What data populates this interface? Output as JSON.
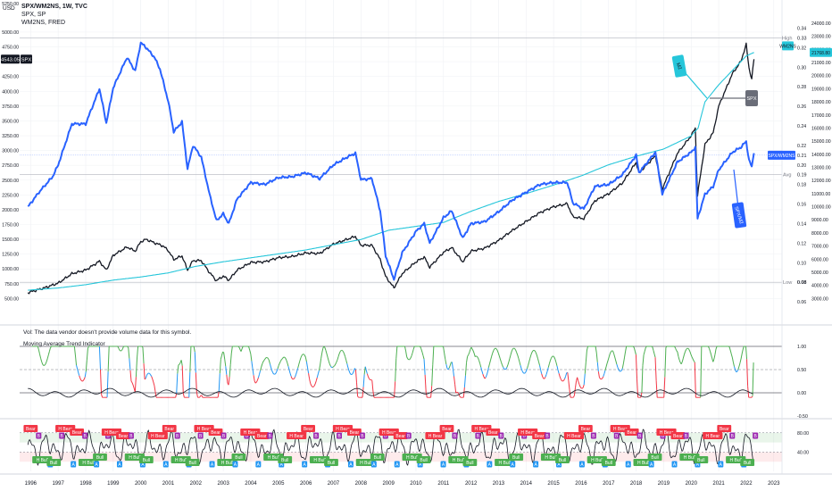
{
  "header": {
    "title": "SPX/WM2NS, 1W, TVC",
    "series": [
      "SPX, SP",
      "WM2NS, FRED"
    ],
    "usd_label": "USD"
  },
  "volume_note": "Vol: The data vendor doesn't provide volume data for this symbol.",
  "indicator_name": "Moving Average Trend Indicator",
  "colors": {
    "spx": "#131722",
    "m2": "#26c6da",
    "ratio": "#2962ff",
    "bull": "#4caf50",
    "bear": "#f23645",
    "neutral": "#2196f3",
    "purple": "#9c27b0"
  },
  "chart_data": [
    {
      "type": "line",
      "title": "SPX/WM2NS, 1W, TVC",
      "x_ticks": [
        "1996",
        "1997",
        "1998",
        "1999",
        "2000",
        "2001",
        "2002",
        "2003",
        "2004",
        "2005",
        "2006",
        "2007",
        "2008",
        "2009",
        "2010",
        "2011",
        "2012",
        "2013",
        "2014",
        "2015",
        "2016",
        "2017",
        "2018",
        "2019",
        "2020",
        "2021",
        "2022",
        "2023"
      ],
      "x_range": [
        1995.6,
        2023.3
      ],
      "left_axis": {
        "ticks": [
          500,
          750,
          1000,
          1250,
          1500,
          1750,
          2000,
          2250,
          2500,
          2750,
          3000,
          3250,
          3500,
          3750,
          4000,
          4250,
          4500,
          4750,
          5000
        ],
        "ylim": [
          280,
          5150
        ],
        "top_label": "5250.00"
      },
      "mid_axis": {
        "ticks": [
          0.06,
          0.08,
          0.1,
          0.12,
          0.14,
          0.16,
          0.18,
          0.2,
          0.22,
          0.24,
          0.26,
          0.28,
          0.3,
          0.32,
          0.34
        ],
        "ylim": [
          0.05,
          0.345
        ]
      },
      "right_axis": {
        "ticks": [
          3000,
          4000,
          5000,
          6000,
          7000,
          8000,
          9000,
          10000,
          11000,
          12000,
          13000,
          14000,
          15000,
          16000,
          17000,
          18000,
          19000,
          20000,
          21000,
          22000,
          23000,
          24000
        ],
        "ylim": [
          2000,
          24000
        ]
      },
      "labels": {
        "spx_price": "4543.05",
        "spx_tag": "SPX",
        "high": "High",
        "high_val": "0.33",
        "m2_tag": "WM2NS",
        "m2_val": "21768.80",
        "ratio_tag": "SPX/WM2NS",
        "ratio_val": "0.21",
        "avg": "Avg",
        "avg_val": "0.19",
        "low": "Low",
        "low_val": "0.08"
      },
      "callouts": [
        "M2",
        "SPX",
        "SPX/M2"
      ],
      "series": [
        {
          "name": "SPX",
          "axis": "left",
          "color": "#131722",
          "points": [
            [
              1995.9,
              600
            ],
            [
              1996.5,
              680
            ],
            [
              1997.0,
              760
            ],
            [
              1997.5,
              920
            ],
            [
              1998.0,
              980
            ],
            [
              1998.5,
              1130
            ],
            [
              1998.75,
              980
            ],
            [
              1999.0,
              1230
            ],
            [
              1999.5,
              1370
            ],
            [
              1999.8,
              1300
            ],
            [
              2000.0,
              1460
            ],
            [
              2000.2,
              1500
            ],
            [
              2000.5,
              1440
            ],
            [
              2000.8,
              1390
            ],
            [
              2001.0,
              1310
            ],
            [
              2001.2,
              1160
            ],
            [
              2001.5,
              1220
            ],
            [
              2001.7,
              980
            ],
            [
              2001.9,
              1140
            ],
            [
              2002.2,
              1140
            ],
            [
              2002.5,
              940
            ],
            [
              2002.75,
              800
            ],
            [
              2003.0,
              880
            ],
            [
              2003.2,
              810
            ],
            [
              2003.5,
              980
            ],
            [
              2004.0,
              1110
            ],
            [
              2004.5,
              1120
            ],
            [
              2005.0,
              1190
            ],
            [
              2005.5,
              1210
            ],
            [
              2006.0,
              1270
            ],
            [
              2006.5,
              1260
            ],
            [
              2007.0,
              1420
            ],
            [
              2007.5,
              1500
            ],
            [
              2007.8,
              1550
            ],
            [
              2008.0,
              1400
            ],
            [
              2008.4,
              1400
            ],
            [
              2008.7,
              1160
            ],
            [
              2008.9,
              870
            ],
            [
              2009.2,
              680
            ],
            [
              2009.5,
              920
            ],
            [
              2010.0,
              1120
            ],
            [
              2010.3,
              1200
            ],
            [
              2010.5,
              1030
            ],
            [
              2011.0,
              1280
            ],
            [
              2011.3,
              1360
            ],
            [
              2011.7,
              1120
            ],
            [
              2012.0,
              1300
            ],
            [
              2012.5,
              1350
            ],
            [
              2013.0,
              1480
            ],
            [
              2013.5,
              1650
            ],
            [
              2014.0,
              1800
            ],
            [
              2014.5,
              1950
            ],
            [
              2015.0,
              2050
            ],
            [
              2015.5,
              2100
            ],
            [
              2015.7,
              1880
            ],
            [
              2016.1,
              1850
            ],
            [
              2016.5,
              2150
            ],
            [
              2017.0,
              2270
            ],
            [
              2017.5,
              2450
            ],
            [
              2018.0,
              2800
            ],
            [
              2018.1,
              2620
            ],
            [
              2018.7,
              2910
            ],
            [
              2018.95,
              2350
            ],
            [
              2019.5,
              2950
            ],
            [
              2020.0,
              3250
            ],
            [
              2020.15,
              3380
            ],
            [
              2020.23,
              2240
            ],
            [
              2020.5,
              3100
            ],
            [
              2020.8,
              3300
            ],
            [
              2021.0,
              3750
            ],
            [
              2021.5,
              4300
            ],
            [
              2021.8,
              4500
            ],
            [
              2022.0,
              4790
            ],
            [
              2022.1,
              4400
            ],
            [
              2022.2,
              4200
            ],
            [
              2022.28,
              4543
            ]
          ]
        },
        {
          "name": "WM2NS",
          "axis": "right",
          "color": "#26c6da",
          "points": [
            [
              1995.9,
              3630
            ],
            [
              1997.0,
              3800
            ],
            [
              1998.0,
              4050
            ],
            [
              1999.0,
              4400
            ],
            [
              2000.0,
              4640
            ],
            [
              2001.0,
              4950
            ],
            [
              2002.0,
              5450
            ],
            [
              2003.0,
              5800
            ],
            [
              2004.0,
              6100
            ],
            [
              2005.0,
              6400
            ],
            [
              2006.0,
              6700
            ],
            [
              2007.0,
              7100
            ],
            [
              2008.0,
              7500
            ],
            [
              2009.0,
              8200
            ],
            [
              2010.0,
              8500
            ],
            [
              2011.0,
              8800
            ],
            [
              2012.0,
              9650
            ],
            [
              2013.0,
              10400
            ],
            [
              2014.0,
              11000
            ],
            [
              2015.0,
              11650
            ],
            [
              2016.0,
              12350
            ],
            [
              2017.0,
              13200
            ],
            [
              2018.0,
              13850
            ],
            [
              2019.0,
              14400
            ],
            [
              2020.0,
              15400
            ],
            [
              2020.25,
              16000
            ],
            [
              2020.5,
              18000
            ],
            [
              2021.0,
              19300
            ],
            [
              2021.5,
              20400
            ],
            [
              2022.0,
              21500
            ],
            [
              2022.28,
              21769
            ]
          ]
        },
        {
          "name": "SPX/WM2NS",
          "axis": "mid",
          "color": "#2962ff",
          "points": [
            [
              1995.9,
              0.157
            ],
            [
              1996.3,
              0.172
            ],
            [
              1996.8,
              0.188
            ],
            [
              1997.0,
              0.2
            ],
            [
              1997.5,
              0.242
            ],
            [
              1998.0,
              0.242
            ],
            [
              1998.5,
              0.278
            ],
            [
              1998.75,
              0.243
            ],
            [
              1999.0,
              0.279
            ],
            [
              1999.5,
              0.31
            ],
            [
              1999.8,
              0.296
            ],
            [
              2000.0,
              0.325
            ],
            [
              2000.2,
              0.32
            ],
            [
              2000.5,
              0.31
            ],
            [
              2000.7,
              0.298
            ],
            [
              2001.0,
              0.265
            ],
            [
              2001.2,
              0.234
            ],
            [
              2001.5,
              0.244
            ],
            [
              2001.7,
              0.196
            ],
            [
              2001.9,
              0.22
            ],
            [
              2002.2,
              0.208
            ],
            [
              2002.5,
              0.17
            ],
            [
              2002.75,
              0.143
            ],
            [
              2003.0,
              0.15
            ],
            [
              2003.2,
              0.14
            ],
            [
              2003.5,
              0.165
            ],
            [
              2004.0,
              0.182
            ],
            [
              2004.5,
              0.18
            ],
            [
              2005.0,
              0.187
            ],
            [
              2005.5,
              0.188
            ],
            [
              2006.0,
              0.192
            ],
            [
              2006.5,
              0.186
            ],
            [
              2007.0,
              0.2
            ],
            [
              2007.5,
              0.208
            ],
            [
              2007.8,
              0.212
            ],
            [
              2008.0,
              0.185
            ],
            [
              2008.4,
              0.186
            ],
            [
              2008.7,
              0.153
            ],
            [
              2008.9,
              0.107
            ],
            [
              2009.2,
              0.083
            ],
            [
              2009.5,
              0.11
            ],
            [
              2010.0,
              0.132
            ],
            [
              2010.3,
              0.14
            ],
            [
              2010.5,
              0.12
            ],
            [
              2011.0,
              0.146
            ],
            [
              2011.3,
              0.153
            ],
            [
              2011.7,
              0.125
            ],
            [
              2012.0,
              0.14
            ],
            [
              2012.5,
              0.142
            ],
            [
              2013.0,
              0.152
            ],
            [
              2013.5,
              0.164
            ],
            [
              2014.0,
              0.172
            ],
            [
              2014.5,
              0.18
            ],
            [
              2015.0,
              0.182
            ],
            [
              2015.5,
              0.182
            ],
            [
              2015.7,
              0.161
            ],
            [
              2016.1,
              0.155
            ],
            [
              2016.5,
              0.178
            ],
            [
              2017.0,
              0.18
            ],
            [
              2017.5,
              0.19
            ],
            [
              2018.0,
              0.21
            ],
            [
              2018.1,
              0.192
            ],
            [
              2018.7,
              0.213
            ],
            [
              2018.95,
              0.17
            ],
            [
              2019.5,
              0.203
            ],
            [
              2020.0,
              0.213
            ],
            [
              2020.15,
              0.218
            ],
            [
              2020.23,
              0.145
            ],
            [
              2020.5,
              0.17
            ],
            [
              2020.8,
              0.178
            ],
            [
              2021.0,
              0.195
            ],
            [
              2021.5,
              0.213
            ],
            [
              2021.8,
              0.218
            ],
            [
              2022.0,
              0.224
            ],
            [
              2022.1,
              0.205
            ],
            [
              2022.2,
              0.198
            ],
            [
              2022.28,
              0.212
            ]
          ]
        }
      ]
    },
    {
      "type": "line",
      "title": "Moving Average Trend Indicator",
      "ylim": [
        -0.5,
        1.0
      ],
      "y_ticks": [
        1.0,
        0.5,
        0.0,
        -0.5
      ],
      "y_tick_labels": [
        "1.00",
        "0.50",
        "0.00",
        "-0.50"
      ]
    },
    {
      "type": "line",
      "ylim": [
        0,
        100
      ],
      "y_ticks": [
        80,
        40
      ],
      "y_tick_labels": [
        "80.00",
        "40.00"
      ],
      "signal_labels": [
        "Bear",
        "H Bear",
        "Bull",
        "H Bull"
      ],
      "short_labels": [
        "B",
        "A"
      ]
    }
  ]
}
